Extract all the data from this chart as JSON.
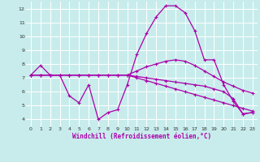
{
  "title": "",
  "xlabel": "Windchill (Refroidissement éolien,°C)",
  "ylabel": "",
  "bg_color": "#c8ecec",
  "line_color": "#aa00aa",
  "grid_color": "#ffffff",
  "xlim": [
    -0.5,
    23.5
  ],
  "ylim": [
    3.5,
    12.5
  ],
  "yticks": [
    4,
    5,
    6,
    7,
    8,
    9,
    10,
    11,
    12
  ],
  "xticks": [
    0,
    1,
    2,
    3,
    4,
    5,
    6,
    7,
    8,
    9,
    10,
    11,
    12,
    13,
    14,
    15,
    16,
    17,
    18,
    19,
    20,
    21,
    22,
    23
  ],
  "series": [
    [
      7.2,
      7.9,
      7.2,
      7.2,
      5.7,
      5.2,
      6.5,
      4.0,
      4.5,
      4.7,
      6.5,
      8.7,
      10.2,
      11.4,
      12.2,
      12.2,
      11.7,
      10.4,
      8.3,
      8.3,
      6.5,
      5.3,
      4.4,
      4.5
    ],
    [
      7.2,
      7.2,
      7.2,
      7.2,
      7.2,
      7.2,
      7.2,
      7.2,
      7.2,
      7.2,
      7.2,
      7.5,
      7.8,
      8.0,
      8.2,
      8.3,
      8.2,
      7.9,
      7.5,
      7.1,
      6.7,
      6.4,
      6.1,
      5.9
    ],
    [
      7.2,
      7.2,
      7.2,
      7.2,
      7.2,
      7.2,
      7.2,
      7.2,
      7.2,
      7.2,
      7.2,
      7.0,
      6.8,
      6.6,
      6.4,
      6.2,
      6.0,
      5.8,
      5.6,
      5.4,
      5.2,
      5.0,
      4.8,
      4.6
    ],
    [
      7.2,
      7.2,
      7.2,
      7.2,
      7.2,
      7.2,
      7.2,
      7.2,
      7.2,
      7.2,
      7.2,
      7.1,
      7.0,
      6.9,
      6.8,
      6.7,
      6.6,
      6.5,
      6.4,
      6.2,
      6.0,
      5.5,
      4.4,
      4.5
    ]
  ]
}
